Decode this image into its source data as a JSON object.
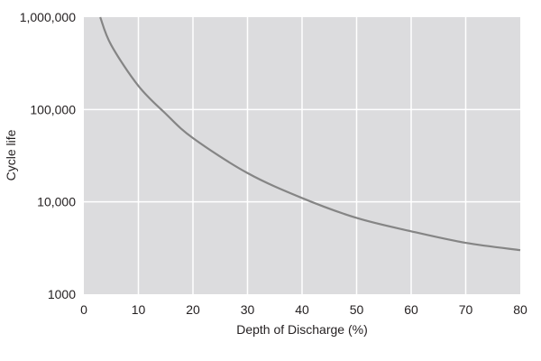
{
  "chart_data": {
    "type": "line",
    "title": "",
    "xlabel": "Depth of Discharge (%)",
    "ylabel": "Cycle life",
    "xlim": [
      0,
      80
    ],
    "ylim": [
      1000,
      1000000
    ],
    "yscale": "log",
    "grid": true,
    "x_ticks": [
      "0",
      "10",
      "20",
      "30",
      "40",
      "50",
      "60",
      "70",
      "80"
    ],
    "y_ticks": [
      "1000",
      "10,000",
      "100,000",
      "1,000,000"
    ],
    "series": [
      {
        "name": "Cycle life",
        "x": [
          3,
          5,
          10,
          15,
          20,
          30,
          40,
          50,
          60,
          70,
          80
        ],
        "values": [
          1000000,
          500000,
          180000,
          90000,
          49000,
          20500,
          11000,
          6700,
          4800,
          3600,
          3000
        ]
      }
    ],
    "colors": {
      "plot_bg": "#dcdcde",
      "grid": "#ffffff",
      "line": "#858585"
    }
  }
}
